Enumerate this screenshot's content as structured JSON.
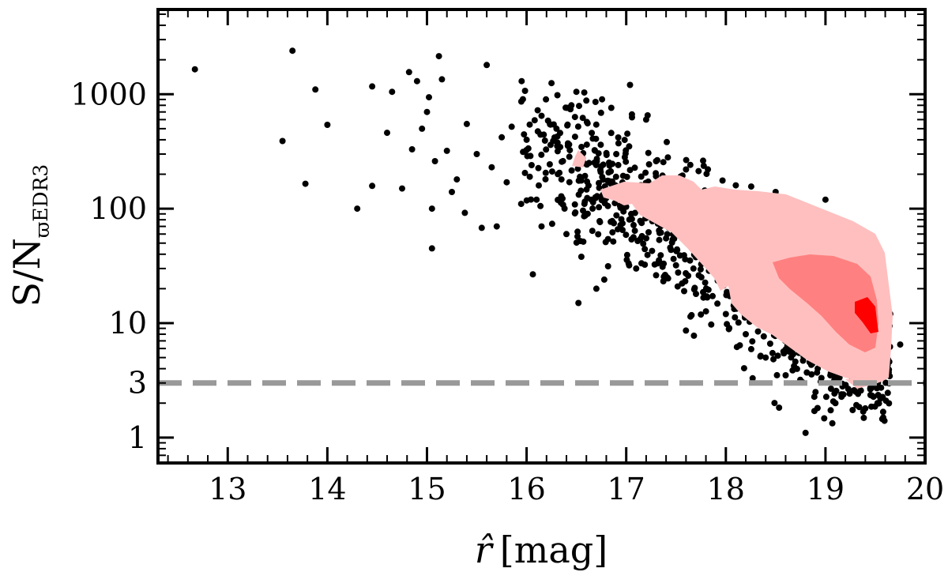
{
  "chart_data": {
    "type": "scatter",
    "title": "",
    "xlabel": {
      "symbol": "r̂",
      "unit": "[mag]"
    },
    "ylabel": {
      "main": "S/N",
      "sub": "ϖ",
      "sub_text": "EDR3"
    },
    "xlim": [
      12.3,
      20.0
    ],
    "ylim": [
      0.6,
      5500
    ],
    "yscale": "log",
    "x_ticks": [
      "13",
      "14",
      "15",
      "16",
      "17",
      "18",
      "19",
      "20"
    ],
    "y_ticks": [
      "1",
      "3",
      "10",
      "100",
      "1000"
    ],
    "grid": false,
    "threshold": {
      "y": 3,
      "style": "dashed",
      "color": "#999999"
    },
    "point_color": "#000000",
    "density_colors": [
      "#ffbfbf",
      "#ff8080",
      "#ff0000"
    ],
    "sample_points": [
      [
        12.67,
        1650
      ],
      [
        13.55,
        390
      ],
      [
        13.65,
        2400
      ],
      [
        13.78,
        165
      ],
      [
        13.88,
        1100
      ],
      [
        14.0,
        540
      ],
      [
        14.3,
        100
      ],
      [
        14.45,
        1170
      ],
      [
        14.45,
        158
      ],
      [
        14.6,
        460
      ],
      [
        14.65,
        1050
      ],
      [
        14.75,
        150
      ],
      [
        14.82,
        1560
      ],
      [
        14.85,
        330
      ],
      [
        14.9,
        1300
      ],
      [
        14.95,
        500
      ],
      [
        15.0,
        700
      ],
      [
        15.02,
        940
      ],
      [
        15.05,
        45
      ],
      [
        15.05,
        100
      ],
      [
        15.08,
        260
      ],
      [
        15.12,
        2150
      ],
      [
        15.15,
        1350
      ],
      [
        15.2,
        320
      ],
      [
        15.25,
        140
      ],
      [
        15.3,
        180
      ],
      [
        15.38,
        92
      ],
      [
        15.4,
        550
      ],
      [
        15.5,
        300
      ],
      [
        15.55,
        68
      ],
      [
        15.6,
        1800
      ],
      [
        15.65,
        230
      ],
      [
        15.7,
        70
      ],
      [
        15.75,
        420
      ],
      [
        15.8,
        170
      ],
      [
        15.85,
        520
      ],
      [
        15.95,
        1300
      ],
      [
        16.0,
        400
      ],
      [
        16.05,
        240
      ],
      [
        16.1,
        120
      ],
      [
        16.15,
        70
      ],
      [
        16.25,
        1250
      ],
      [
        16.3,
        500
      ],
      [
        16.35,
        180
      ],
      [
        16.4,
        60
      ],
      [
        16.45,
        800
      ],
      [
        16.5,
        1050
      ],
      [
        16.52,
        15
      ],
      [
        16.55,
        38
      ],
      [
        16.6,
        880
      ],
      [
        16.65,
        120
      ],
      [
        16.7,
        20
      ],
      [
        16.78,
        24
      ],
      [
        16.85,
        760
      ],
      [
        16.9,
        300
      ],
      [
        17.0,
        150
      ],
      [
        17.05,
        90
      ],
      [
        17.1,
        30
      ],
      [
        17.2,
        600
      ],
      [
        17.3,
        260
      ],
      [
        17.4,
        55
      ],
      [
        17.5,
        32
      ],
      [
        17.6,
        220
      ],
      [
        17.7,
        18
      ],
      [
        17.8,
        140
      ],
      [
        17.9,
        45
      ],
      [
        18.0,
        12
      ],
      [
        18.1,
        160
      ],
      [
        18.2,
        8
      ],
      [
        18.3,
        70
      ],
      [
        18.4,
        5
      ],
      [
        18.5,
        140
      ],
      [
        18.6,
        3.5
      ],
      [
        18.7,
        60
      ],
      [
        18.8,
        1.1
      ],
      [
        18.9,
        2.5
      ],
      [
        19.0,
        120
      ],
      [
        19.1,
        2.0
      ],
      [
        19.2,
        4.0
      ],
      [
        19.3,
        50
      ],
      [
        19.4,
        1.8
      ],
      [
        19.5,
        3.5
      ],
      [
        19.58,
        1.5
      ],
      [
        19.65,
        12
      ],
      [
        19.75,
        6.5
      ]
    ]
  }
}
